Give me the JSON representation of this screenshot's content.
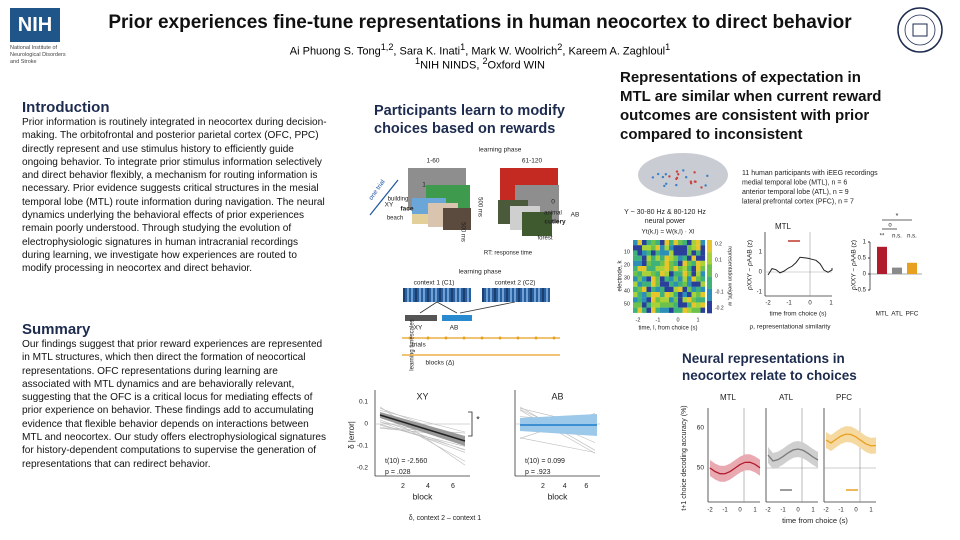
{
  "header": {
    "logo": "NIH",
    "institute": "National Institute of Neurological Disorders and Stroke",
    "title": "Prior experiences fine-tune representations in human neocortex to direct behavior",
    "separator": ", ",
    "authors": [
      {
        "name": "Ai Phuong S. Tong",
        "aff": "1,2"
      },
      {
        "name": "Sara K. Inati",
        "aff": "1"
      },
      {
        "name": "Mark W. Woolrich",
        "aff": "2"
      },
      {
        "name": "Kareem A. Zaghloul",
        "aff": "1"
      }
    ],
    "affiliations": [
      {
        "mark": "1",
        "name": "NIH NINDS"
      },
      {
        "mark": "2",
        "name": "Oxford WIN"
      }
    ]
  },
  "introduction": {
    "heading": "Introduction",
    "text": "Prior information is routinely integrated in neocortex during decision-making. The orbitofrontal and posterior parietal cortex (OFC, PPC) directly represent and use stimulus history to efficiently guide ongoing behavior. To integrate prior stimulus information selectively and direct behavior flexibly, a mechanism for routing information is necessary. Prior evidence suggests critical structures in the mesial temporal lobe (MTL) route information during navigation. The neural dynamics underlying the behavioral effects of prior experiences remain poorly understood. Through studying the evolution of electrophysiologic signatures in human intracranial recordings during learning, we investigate how experiences are routed to modify processing in neocortex and direct behavior."
  },
  "summary": {
    "heading": "Summary",
    "text": "Our findings suggest that prior reward experiences are represented in MTL structures, which then direct the formation of neocortical representations. OFC representations during learning are associated with MTL dynamics and are behaviorally relevant, suggesting that the OFC is a critical locus for mediating effects of prior experience on behavior. These findings add to accumulating evidence that flexible behavior depends on interactions between MTL and neocortex. Our study offers electrophysiological signatures for history-dependent computations to supervise the generation of representations that can redirect behavior."
  },
  "task": {
    "heading": "Participants learn to modify choices based on rewards",
    "learning_phase": "learning phase",
    "blocks": [
      "1-60",
      "61-120"
    ],
    "one_trial": "one trial",
    "rewards": [
      "1",
      "0"
    ],
    "pairs": [
      "XY",
      "AB"
    ],
    "stimuli_xy": [
      "building",
      "face",
      "beach"
    ],
    "stimuli_ab": [
      "animal",
      "cutlery",
      "forest"
    ],
    "durations": [
      "500 ms",
      "500 ms"
    ],
    "rt": "RT: response time",
    "phase": {
      "title": "learning phase",
      "contexts": [
        "context 1 (C1)",
        "context 2 (C2)"
      ],
      "pairs": [
        "XY",
        "AB"
      ],
      "trials": "trials",
      "timescales": "learning timescales",
      "blocks": "blocks (Δ)"
    }
  },
  "behavior": {
    "panels": [
      {
        "title": "XY",
        "stats": [
          "t(10) = -2.560",
          "p = .028"
        ],
        "marker": "*"
      },
      {
        "title": "AB",
        "stats": [
          "t(10) = 0.099",
          "p = .923"
        ]
      }
    ],
    "xticks": [
      "2",
      "4",
      "6"
    ],
    "yticks": [
      "0.1",
      "0",
      "-0.1",
      "-0.2"
    ],
    "ylabel": "δ |error|",
    "xlabel": "block",
    "caption": "δ, context 2 – context 1"
  },
  "representation": {
    "heading": "Representations of expectation in MTL are similar when current reward outcomes are consistent with prior compared to inconsistent",
    "participants": [
      "11 human participants with iEEG recordings",
      "medial temporal lobe (MTL), n = 6",
      "anterior temporal lobe (ATL), n = 9",
      "lateral prefrontal cortex (PFC), n = 7"
    ],
    "signal": [
      "Y ~ 30-80 Hz & 80-120 Hz",
      "neural power"
    ],
    "equation": "Yt(k,l) = W(k,l) · Xl",
    "heatmap": {
      "ylabel": "electrode, k",
      "yticks": [
        "10",
        "20",
        "30",
        "40",
        "50"
      ],
      "xlabel": "time, l, from choice (s)",
      "xticks": [
        "-2",
        "-1",
        "0",
        "1"
      ],
      "colorbar_label": "representation weight, w",
      "colorbar_ticks": [
        "0.2",
        "0.1",
        "0",
        "-0.1",
        "-0.2"
      ]
    },
    "timecourse": {
      "title": "MTL",
      "ylabel": "ρXXY − ρAAB (z)",
      "yticks": [
        "1",
        "0",
        "-1"
      ],
      "xticks": [
        "-2",
        "-1",
        "0",
        "1"
      ],
      "xlabel": "time from choice (s)"
    },
    "caption": "ρ, representational similarity",
    "bar_chart": {
      "categories": [
        "MTL",
        "ATL",
        "PFC"
      ],
      "values": [
        0.85,
        0.2,
        0.35
      ],
      "colors": [
        "#b01c2e",
        "#8a8a8a",
        "#e8a020"
      ],
      "ylim": [
        -0.5,
        1
      ],
      "yticks": [
        1,
        0.5,
        0,
        -0.5
      ],
      "ylabel": "ρXXY − ρAAB (z)",
      "significance": [
        "*",
        "o",
        "**",
        "n.s.",
        "n.s."
      ]
    }
  },
  "decoding": {
    "heading": "Neural representations in neocortex relate to choices",
    "panels": [
      "MTL",
      "ATL",
      "PFC"
    ],
    "yticks": [
      "60",
      "50"
    ],
    "ylabel": "t+1 choice decoding accuracy (%)",
    "xticks": [
      "-2",
      "-1",
      "0",
      "1"
    ],
    "xlabel": "time from choice (s)"
  }
}
